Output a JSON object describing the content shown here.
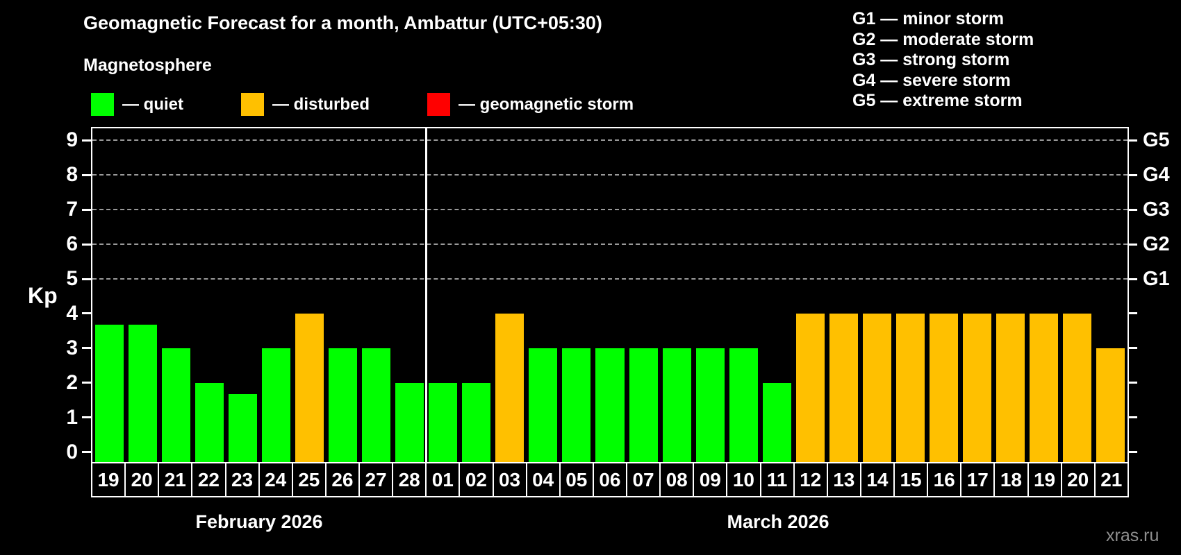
{
  "title": "Geomagnetic Forecast for a month, Ambattur (UTC+05:30)",
  "subtitle": "Magnetosphere",
  "watermark": "xras.ru",
  "colors": {
    "quiet": "#00ff00",
    "disturbed": "#ffc000",
    "storm": "#ff0000",
    "grid": "#9a9a9a",
    "axis": "#ffffff",
    "watermark": "#8f8f8f"
  },
  "legend": {
    "items": [
      {
        "key": "quiet",
        "label": "— quiet"
      },
      {
        "key": "disturbed",
        "label": "— disturbed"
      },
      {
        "key": "storm",
        "label": "— geomagnetic storm"
      }
    ]
  },
  "g_legend": [
    "G1 — minor storm",
    "G2 — moderate storm",
    "G3 — strong storm",
    "G4 — severe storm",
    "G5 — extreme storm"
  ],
  "axis": {
    "ylabel": "Kp",
    "yticks": [
      0,
      1,
      2,
      3,
      4,
      5,
      6,
      7,
      8,
      9
    ],
    "grid_levels": [
      5,
      6,
      7,
      8,
      9
    ],
    "right_labels": [
      {
        "kp": 5,
        "label": "G1"
      },
      {
        "kp": 6,
        "label": "G2"
      },
      {
        "kp": 7,
        "label": "G3"
      },
      {
        "kp": 8,
        "label": "G4"
      },
      {
        "kp": 9,
        "label": "G5"
      }
    ]
  },
  "months": [
    {
      "label": "February 2026",
      "days": 10
    },
    {
      "label": "March 2026",
      "days": 21
    }
  ],
  "chart_data": {
    "type": "bar",
    "title": "Geomagnetic Forecast for a month, Ambattur (UTC+05:30)",
    "xlabel": "",
    "ylabel": "Kp",
    "ylim": [
      0,
      9
    ],
    "grid": "dashed horizontal at Kp 5-9",
    "legend_position": "top-left",
    "categories": [
      "19",
      "20",
      "21",
      "22",
      "23",
      "24",
      "25",
      "26",
      "27",
      "28",
      "01",
      "02",
      "03",
      "04",
      "05",
      "06",
      "07",
      "08",
      "09",
      "10",
      "11",
      "12",
      "13",
      "14",
      "15",
      "16",
      "17",
      "18",
      "19",
      "20",
      "21"
    ],
    "values": [
      3.67,
      3.67,
      3,
      2,
      1.67,
      3,
      4,
      3,
      3,
      2,
      2,
      2,
      4,
      3,
      3,
      3,
      3,
      3,
      3,
      3,
      2,
      4,
      4,
      4,
      4,
      4,
      4,
      4,
      4,
      4,
      3
    ],
    "statuses": [
      "quiet",
      "quiet",
      "quiet",
      "quiet",
      "quiet",
      "quiet",
      "disturbed",
      "quiet",
      "quiet",
      "quiet",
      "quiet",
      "quiet",
      "disturbed",
      "quiet",
      "quiet",
      "quiet",
      "quiet",
      "quiet",
      "quiet",
      "quiet",
      "quiet",
      "disturbed",
      "disturbed",
      "disturbed",
      "disturbed",
      "disturbed",
      "disturbed",
      "disturbed",
      "disturbed",
      "disturbed",
      "disturbed"
    ]
  }
}
